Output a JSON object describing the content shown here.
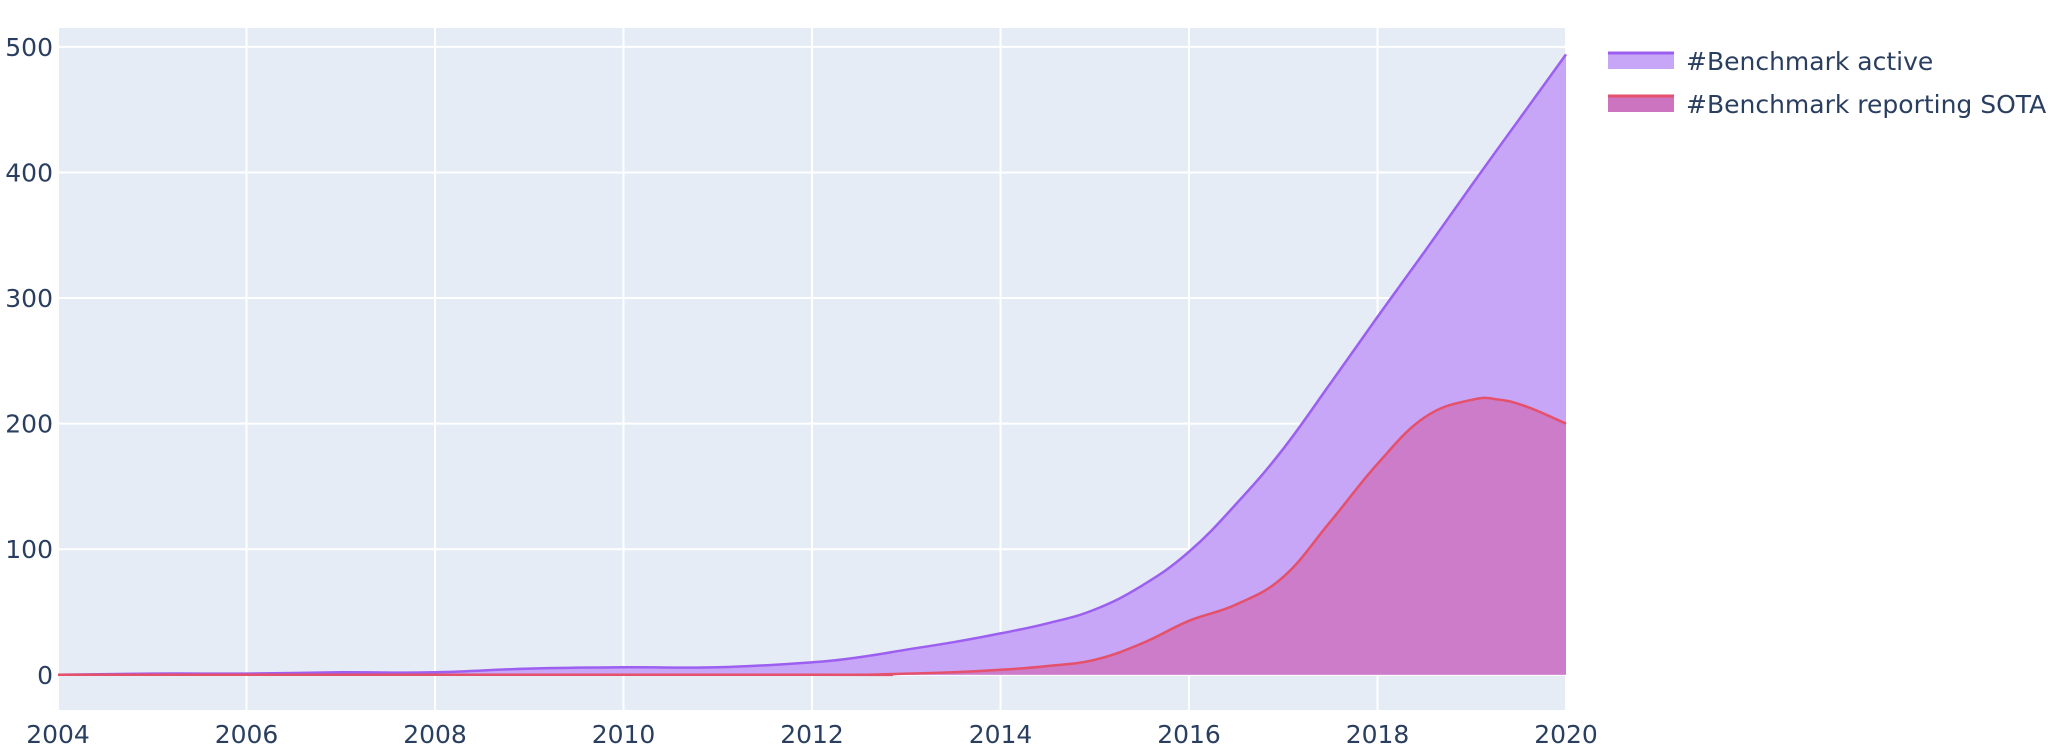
{
  "chart_data": {
    "type": "area",
    "x_range": [
      2004,
      2020
    ],
    "y_range": [
      -28,
      515
    ],
    "x_ticks": [
      "2004",
      "2006",
      "2008",
      "2010",
      "2012",
      "2014",
      "2016",
      "2018",
      "2020"
    ],
    "y_ticks": [
      "0",
      "100",
      "200",
      "300",
      "400",
      "500"
    ],
    "grid": true,
    "legend_position": "top-right",
    "series": [
      {
        "name": "#Benchmark active",
        "color": "#9c5ff0",
        "fill": "#c7a6f7",
        "x": [
          2004,
          2005,
          2006,
          2007,
          2008,
          2009,
          2010,
          2011,
          2012,
          2012.5,
          2013,
          2013.5,
          2014,
          2014.5,
          2015,
          2015.5,
          2016,
          2016.5,
          2017,
          2017.5,
          2018,
          2018.5,
          2019,
          2019.5,
          2020
        ],
        "y": [
          0,
          1,
          1,
          2,
          2,
          5,
          6,
          6,
          10,
          14,
          20,
          26,
          33,
          41,
          52,
          71,
          98,
          136,
          180,
          232,
          285,
          337,
          390,
          442,
          494
        ]
      },
      {
        "name": "#Benchmark reporting SOTA",
        "color": "#e5506a",
        "fill": "#cc74c0",
        "x": [
          2004,
          2012,
          2012.5,
          2013,
          2013.5,
          2014,
          2014.5,
          2015,
          2015.5,
          2016,
          2016.5,
          2017,
          2017.5,
          2018,
          2018.5,
          2019,
          2019.3,
          2019.6,
          2020
        ],
        "y": [
          0,
          0,
          0,
          1,
          2,
          4,
          7,
          12,
          25,
          43,
          56,
          78,
          122,
          168,
          205,
          219,
          219,
          213,
          200
        ]
      }
    ]
  }
}
